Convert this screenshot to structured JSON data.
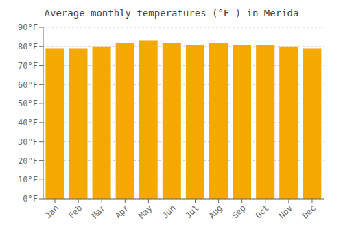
{
  "chart_data": {
    "type": "bar",
    "title": "Average monthly temperatures (°F ) in Merida",
    "categories": [
      "Jan",
      "Feb",
      "Mar",
      "Apr",
      "May",
      "Jun",
      "Jul",
      "Aug",
      "Sep",
      "Oct",
      "Nov",
      "Dec"
    ],
    "values": [
      79,
      79,
      80,
      82,
      83,
      82,
      81,
      82,
      81,
      81,
      80,
      79
    ],
    "color": "#F5A800",
    "ylim": [
      0,
      90
    ],
    "yticks": [
      {
        "value": 0,
        "label": "0°F"
      },
      {
        "value": 10,
        "label": "10°F"
      },
      {
        "value": 20,
        "label": "20°F"
      },
      {
        "value": 30,
        "label": "30°F"
      },
      {
        "value": 40,
        "label": "40°F"
      },
      {
        "value": 50,
        "label": "50°F"
      },
      {
        "value": 60,
        "label": "60°F"
      },
      {
        "value": 70,
        "label": "70°F"
      },
      {
        "value": 80,
        "label": "80°F"
      },
      {
        "value": 90,
        "label": "90°F"
      }
    ],
    "grid": true
  }
}
